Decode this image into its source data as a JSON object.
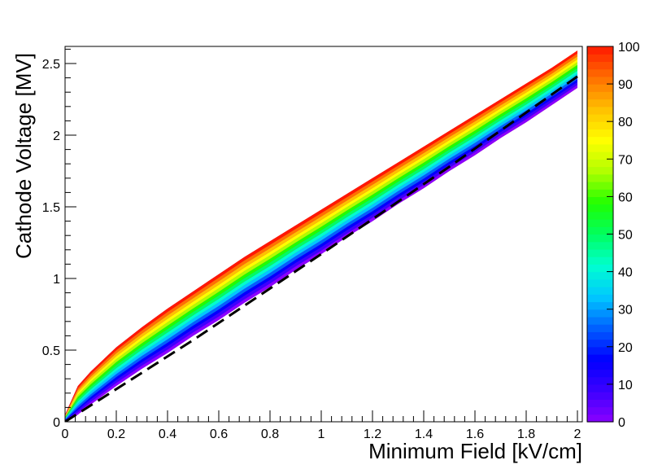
{
  "chart_data": {
    "type": "heatmap",
    "title": "",
    "xlabel": "Minimum Field [kV/cm]",
    "ylabel": "Cathode Voltage [MV]",
    "xlim": [
      0,
      2.0
    ],
    "ylim": [
      0,
      2.62
    ],
    "x_ticks": [
      "0",
      "0.2",
      "0.4",
      "0.6",
      "0.8",
      "1",
      "1.2",
      "1.4",
      "1.6",
      "1.8",
      "2"
    ],
    "y_ticks": [
      "0",
      "0.5",
      "1",
      "1.5",
      "2",
      "2.5"
    ],
    "colorbar": {
      "range": [
        0,
        100
      ],
      "ticks": [
        "0",
        "10",
        "20",
        "30",
        "40",
        "50",
        "60",
        "70",
        "80",
        "90",
        "100"
      ],
      "palette": [
        "#8a00ff",
        "#3c00ff",
        "#0000ff",
        "#0060ff",
        "#00c8ff",
        "#00ffd0",
        "#00ff60",
        "#20ff00",
        "#b0ff00",
        "#ffff00",
        "#ffc000",
        "#ff7000",
        "#ff1800"
      ]
    },
    "band": {
      "x": [
        0,
        0.05,
        0.1,
        0.2,
        0.3,
        0.4,
        0.5,
        0.6,
        0.7,
        0.8,
        0.9,
        1.0,
        1.1,
        1.2,
        1.3,
        1.4,
        1.5,
        1.6,
        1.7,
        1.8,
        1.9,
        2.0
      ],
      "upper": [
        0.05,
        0.25,
        0.35,
        0.52,
        0.66,
        0.79,
        0.91,
        1.03,
        1.15,
        1.26,
        1.37,
        1.48,
        1.59,
        1.7,
        1.81,
        1.92,
        2.03,
        2.14,
        2.25,
        2.36,
        2.47,
        2.59
      ],
      "lower": [
        0.0,
        0.05,
        0.12,
        0.25,
        0.37,
        0.48,
        0.6,
        0.71,
        0.83,
        0.94,
        1.06,
        1.17,
        1.29,
        1.4,
        1.52,
        1.63,
        1.75,
        1.86,
        1.98,
        2.09,
        2.21,
        2.33
      ]
    },
    "dashed_line": {
      "color": "#000000",
      "x": [
        0,
        0.5,
        1.0,
        1.5,
        2.0
      ],
      "y": [
        0.0,
        0.57,
        1.17,
        1.78,
        2.41
      ]
    }
  }
}
